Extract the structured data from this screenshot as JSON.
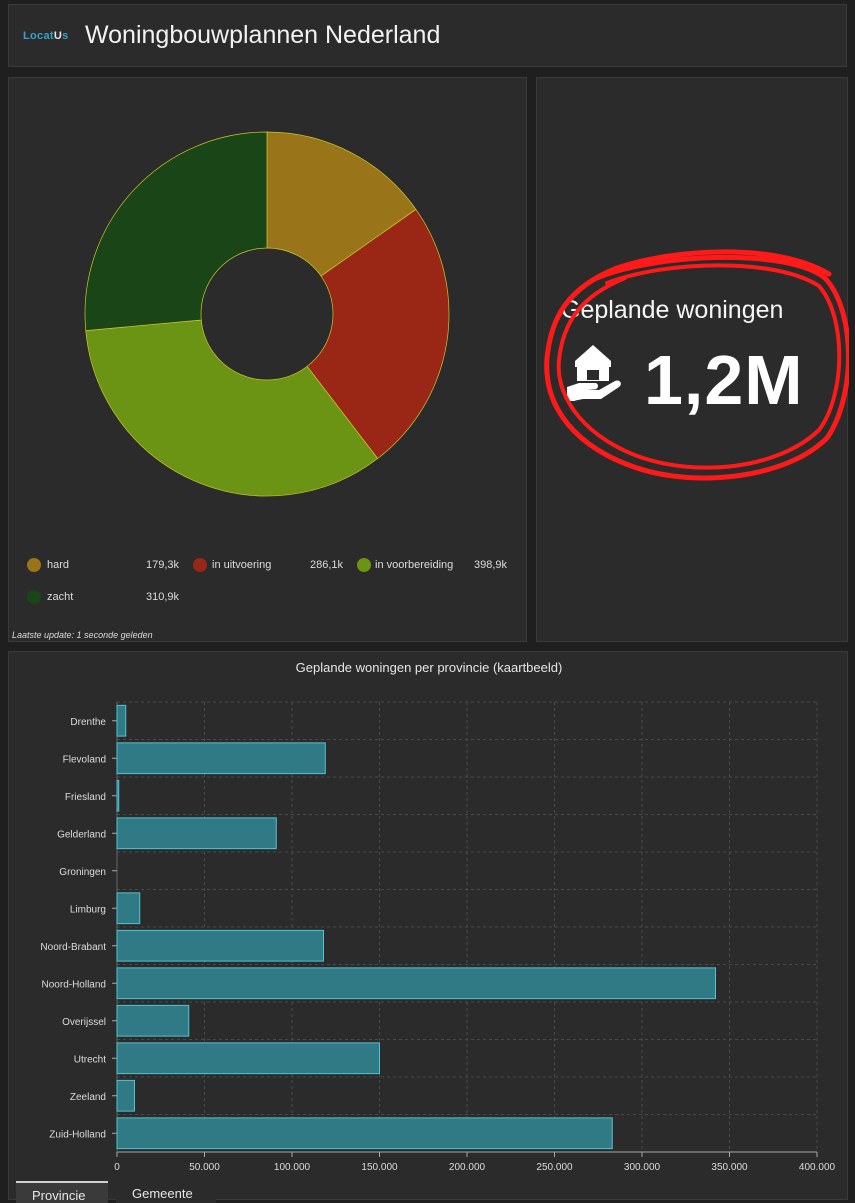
{
  "header": {
    "logo_pre": "Locat",
    "logo_mid": "U",
    "logo_post": "s",
    "title": "Woningbouwplannen Nederland"
  },
  "donut": {
    "segments": [
      {
        "name": "hard",
        "value": 179.3,
        "label": "179,3k",
        "color": "#9a7418"
      },
      {
        "name": "in uitvoering",
        "value": 286.1,
        "label": "286,1k",
        "color": "#9a2616"
      },
      {
        "name": "in voorbereiding",
        "value": 398.9,
        "label": "398,9k",
        "color": "#6b9415"
      },
      {
        "name": "zacht",
        "value": 310.9,
        "label": "310,9k",
        "color": "#1a4517"
      }
    ],
    "update": "Laatste update: 1 seconde geleden"
  },
  "kpi": {
    "title": "Geplande woningen",
    "value": "1,2M",
    "icon": "house-in-hand-icon"
  },
  "chart_data": {
    "type": "bar",
    "orientation": "horizontal",
    "title": "Geplande woningen per provincie (kaartbeeld)",
    "categories": [
      "Drenthe",
      "Flevoland",
      "Friesland",
      "Gelderland",
      "Groningen",
      "Limburg",
      "Noord-Brabant",
      "Noord-Holland",
      "Overijssel",
      "Utrecht",
      "Zeeland",
      "Zuid-Holland"
    ],
    "values": [
      5000,
      119000,
      1000,
      91000,
      0,
      13000,
      118000,
      342000,
      41000,
      150000,
      10000,
      283000
    ],
    "xlim": [
      0,
      400000
    ],
    "ticks": [
      "0",
      "50.000",
      "100.000",
      "150.000",
      "200.000",
      "250.000",
      "300.000",
      "350.000",
      "400.000"
    ],
    "grid": true,
    "bar_color": "#2f7a85",
    "bar_stroke": "#52c3d2"
  },
  "tabs": [
    "Provincie",
    "Gemeente"
  ]
}
